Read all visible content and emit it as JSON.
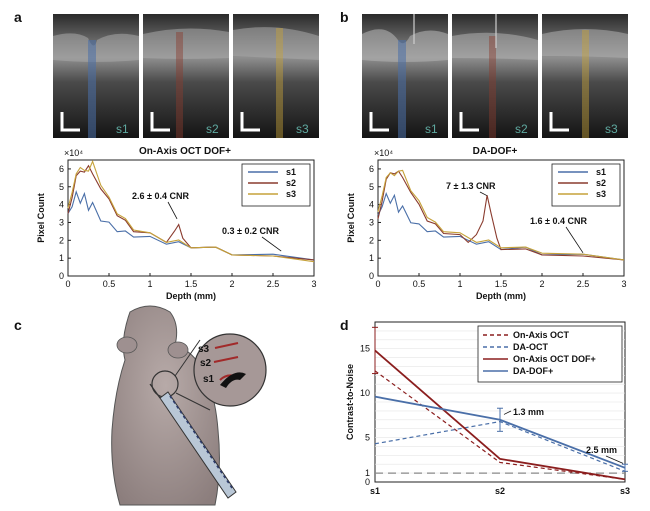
{
  "figure": {
    "panel_labels": [
      "a",
      "b",
      "c",
      "d"
    ],
    "bscan_labels": [
      "s1",
      "s2",
      "s3"
    ],
    "mouse_labels": [
      "s3",
      "s2",
      "s1"
    ],
    "colors": {
      "s1": "#4a6fa8",
      "s2": "#8a3b2e",
      "s3": "#c6a23a",
      "onaxis_oct": "#8b1e1e",
      "da_oct": "#4a6fa8",
      "onaxis_dof": "#8b1e1e",
      "da_dof": "#4a6fa8"
    }
  },
  "chart_data": [
    {
      "id": "a",
      "type": "line",
      "title": "On-Axis OCT DOF+",
      "xlabel": "Depth (mm)",
      "ylabel": "Pixel Count",
      "multiplier": "×10⁴",
      "xlim": [
        0,
        3
      ],
      "ylim": [
        0,
        6.5
      ],
      "xticks": [
        "0",
        "0.5",
        "1",
        "1.5",
        "2",
        "2.5",
        "3"
      ],
      "yticks": [
        "0",
        "1",
        "2",
        "3",
        "4",
        "5",
        "6"
      ],
      "legend": "top-right",
      "annotations": [
        "2.6 ± 0.4 CNR",
        "0.3 ± 0.2 CNR"
      ],
      "series": [
        {
          "name": "s1",
          "x": [
            0,
            0.05,
            0.1,
            0.15,
            0.2,
            0.25,
            0.3,
            0.4,
            0.5,
            0.6,
            0.7,
            0.8,
            1.0,
            1.2,
            1.35,
            1.5,
            1.8,
            2.0,
            2.5,
            3.0
          ],
          "y": [
            3.5,
            4.0,
            4.6,
            4.2,
            4.5,
            3.8,
            4.0,
            3.2,
            2.9,
            2.6,
            2.4,
            2.3,
            2.1,
            1.9,
            1.8,
            1.7,
            1.5,
            1.3,
            1.1,
            0.9
          ]
        },
        {
          "name": "s2",
          "x": [
            0,
            0.05,
            0.1,
            0.15,
            0.2,
            0.25,
            0.3,
            0.4,
            0.5,
            0.6,
            0.7,
            0.8,
            1.0,
            1.2,
            1.3,
            1.35,
            1.4,
            1.5,
            1.8,
            2.0,
            2.5,
            3.0
          ],
          "y": [
            3.5,
            4.5,
            5.5,
            6.0,
            5.7,
            6.3,
            5.6,
            5.0,
            4.2,
            3.5,
            3.0,
            2.6,
            2.3,
            2.0,
            2.4,
            3.0,
            2.0,
            1.7,
            1.5,
            1.3,
            1.0,
            0.9
          ]
        },
        {
          "name": "s3",
          "x": [
            0,
            0.05,
            0.1,
            0.15,
            0.2,
            0.25,
            0.3,
            0.4,
            0.5,
            0.6,
            0.7,
            0.8,
            1.0,
            1.2,
            1.35,
            1.5,
            1.8,
            2.0,
            2.5,
            3.0
          ],
          "y": [
            3.8,
            4.8,
            5.6,
            6.2,
            5.8,
            6.0,
            6.3,
            5.2,
            4.3,
            3.6,
            3.1,
            2.7,
            2.3,
            2.0,
            1.9,
            1.7,
            1.5,
            1.3,
            1.0,
            0.8
          ]
        }
      ]
    },
    {
      "id": "b",
      "type": "line",
      "title": "DA-DOF+",
      "xlabel": "Depth (mm)",
      "ylabel": "Pixel Count",
      "multiplier": "×10⁴",
      "xlim": [
        0,
        3
      ],
      "ylim": [
        0,
        6.5
      ],
      "xticks": [
        "0",
        "0.5",
        "1",
        "1.5",
        "2",
        "2.5",
        "3"
      ],
      "yticks": [
        "0",
        "1",
        "2",
        "3",
        "4",
        "5",
        "6"
      ],
      "legend": "top-right",
      "annotations": [
        "7 ± 1.3 CNR",
        "1.6 ± 0.4 CNR"
      ],
      "series": [
        {
          "name": "s1",
          "x": [
            0,
            0.05,
            0.1,
            0.15,
            0.2,
            0.25,
            0.3,
            0.4,
            0.5,
            0.6,
            0.7,
            0.8,
            1.0,
            1.2,
            1.35,
            1.5,
            1.8,
            2.0,
            2.5,
            3.0
          ],
          "y": [
            3.4,
            4.0,
            4.5,
            4.2,
            4.4,
            3.7,
            3.8,
            3.1,
            2.8,
            2.6,
            2.4,
            2.3,
            2.1,
            1.9,
            1.8,
            1.6,
            1.5,
            1.3,
            1.1,
            0.9
          ]
        },
        {
          "name": "s2",
          "x": [
            0,
            0.05,
            0.1,
            0.15,
            0.2,
            0.25,
            0.3,
            0.4,
            0.5,
            0.6,
            0.7,
            0.8,
            1.0,
            1.1,
            1.2,
            1.28,
            1.33,
            1.38,
            1.45,
            1.5,
            1.8,
            2.0,
            2.5,
            3.0
          ],
          "y": [
            3.2,
            4.3,
            5.3,
            5.9,
            5.6,
            6.0,
            5.4,
            4.8,
            3.9,
            3.2,
            2.8,
            2.5,
            2.2,
            2.0,
            2.2,
            3.2,
            4.4,
            3.6,
            2.0,
            1.6,
            1.4,
            1.3,
            1.0,
            0.9
          ]
        },
        {
          "name": "s3",
          "x": [
            0,
            0.05,
            0.1,
            0.15,
            0.2,
            0.25,
            0.3,
            0.4,
            0.5,
            0.6,
            0.7,
            0.8,
            1.0,
            1.2,
            1.35,
            1.5,
            1.8,
            2.0,
            2.5,
            3.0
          ],
          "y": [
            3.6,
            4.6,
            5.4,
            5.9,
            5.5,
            6.0,
            5.8,
            4.9,
            4.1,
            3.4,
            2.9,
            2.6,
            2.3,
            2.0,
            1.9,
            1.7,
            1.5,
            1.4,
            1.1,
            0.9
          ]
        }
      ]
    },
    {
      "id": "d",
      "type": "line",
      "title": "",
      "xlabel": "",
      "ylabel": "Contrast-to-Noise",
      "categories": [
        "s1",
        "s2",
        "s3"
      ],
      "yticks": [
        "0",
        "1",
        "5",
        "10",
        "15"
      ],
      "ylim": [
        0,
        18
      ],
      "legend": "top-right",
      "annotations": [
        "1.3 mm",
        "2.5 mm"
      ],
      "series": [
        {
          "name": "On-Axis OCT",
          "values": [
            12.5,
            2.2,
            0.3
          ],
          "dash": "dashed"
        },
        {
          "name": "DA-OCT",
          "values": [
            4.3,
            6.8,
            1.2
          ],
          "dash": "dashed"
        },
        {
          "name": "On-Axis OCT DOF+",
          "values": [
            14.8,
            2.6,
            0.3
          ],
          "dash": "solid"
        },
        {
          "name": "DA-DOF+",
          "values": [
            9.6,
            7.0,
            1.6
          ],
          "dash": "solid"
        }
      ],
      "error_bars": [
        {
          "series": "On-Axis OCT DOF+",
          "index": 0,
          "low": 12.2,
          "high": 17.4
        },
        {
          "series": "DA-DOF+",
          "index": 1,
          "low": 5.7,
          "high": 8.3
        },
        {
          "series": "DA-DOF+",
          "index": 2,
          "low": 1.2,
          "high": 2.0
        }
      ],
      "reference_line": 1
    }
  ]
}
